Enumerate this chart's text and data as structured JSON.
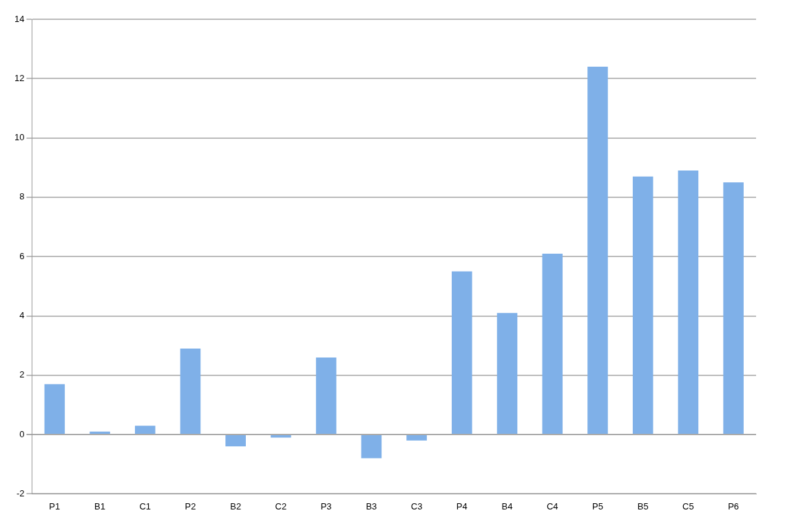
{
  "chart_data": {
    "type": "bar",
    "categories": [
      "P1",
      "B1",
      "C1",
      "P2",
      "B2",
      "C2",
      "P3",
      "B3",
      "C3",
      "P4",
      "B4",
      "C4",
      "P5",
      "B5",
      "C5",
      "P6"
    ],
    "values": [
      1.7,
      0.1,
      0.3,
      2.9,
      -0.4,
      -0.1,
      2.6,
      -0.8,
      -0.2,
      5.5,
      4.1,
      6.1,
      12.4,
      8.7,
      8.9,
      8.5
    ],
    "color": "#7fb0e8",
    "ylim": [
      -2,
      14
    ],
    "yticks": [
      -2,
      0,
      2,
      4,
      6,
      8,
      10,
      12,
      14
    ],
    "grid": "y",
    "legend": false
  }
}
